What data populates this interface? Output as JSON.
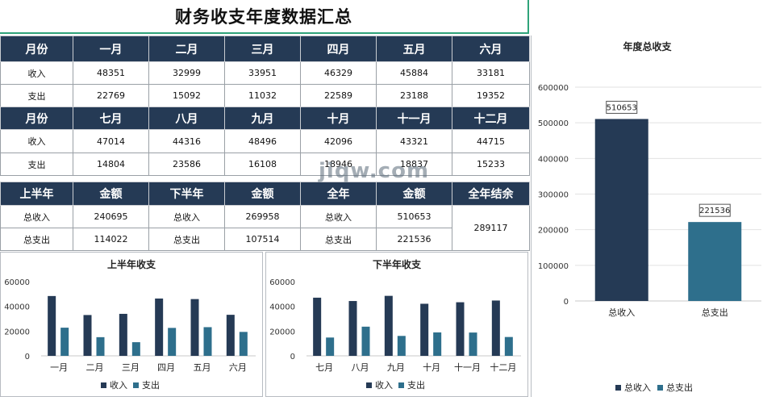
{
  "title": "财务收支年度数据汇总",
  "watermark": "jiqw.com",
  "month_table_1": {
    "header_label": "月份",
    "months": [
      "一月",
      "二月",
      "三月",
      "四月",
      "五月",
      "六月"
    ],
    "income_label": "收入",
    "expense_label": "支出",
    "income": [
      "48351",
      "32999",
      "33951",
      "46329",
      "45884",
      "33181"
    ],
    "expense": [
      "22769",
      "15092",
      "11032",
      "22589",
      "23188",
      "19352"
    ]
  },
  "month_table_2": {
    "header_label": "月份",
    "months": [
      "七月",
      "八月",
      "九月",
      "十月",
      "十一月",
      "十二月"
    ],
    "income_label": "收入",
    "expense_label": "支出",
    "income": [
      "47014",
      "44316",
      "48496",
      "42096",
      "43321",
      "44715"
    ],
    "expense": [
      "14804",
      "23586",
      "16108",
      "18946",
      "18837",
      "15233"
    ]
  },
  "summary": {
    "headers": [
      "上半年",
      "金额",
      "下半年",
      "金额",
      "全年",
      "金额",
      "全年结余"
    ],
    "rows": [
      [
        "总收入",
        "240695",
        "总收入",
        "269958",
        "总收入",
        "510653"
      ],
      [
        "总支出",
        "114022",
        "总支出",
        "107514",
        "总支出",
        "221536"
      ]
    ],
    "balance": "289117"
  },
  "colors": {
    "income": "#253a55",
    "expense": "#2e6f8c",
    "header": "#253a55",
    "accent": "#2fa37a"
  },
  "chart_data": [
    {
      "type": "bar",
      "title": "上半年收支",
      "categories": [
        "一月",
        "二月",
        "三月",
        "四月",
        "五月",
        "六月"
      ],
      "series": [
        {
          "name": "收入",
          "values": [
            48351,
            32999,
            33951,
            46329,
            45884,
            33181
          ]
        },
        {
          "name": "支出",
          "values": [
            22769,
            15092,
            11032,
            22589,
            23188,
            19352
          ]
        }
      ],
      "ylim": [
        0,
        60000
      ],
      "yticks": [
        "0",
        "20000",
        "40000",
        "60000"
      ],
      "legend": "bottom",
      "grid": false
    },
    {
      "type": "bar",
      "title": "下半年收支",
      "categories": [
        "七月",
        "八月",
        "九月",
        "十月",
        "十一月",
        "十二月"
      ],
      "series": [
        {
          "name": "收入",
          "values": [
            47014,
            44316,
            48496,
            42096,
            43321,
            44715
          ]
        },
        {
          "name": "支出",
          "values": [
            14804,
            23586,
            16108,
            18946,
            18837,
            15233
          ]
        }
      ],
      "ylim": [
        0,
        60000
      ],
      "yticks": [
        "0",
        "20000",
        "40000",
        "60000"
      ],
      "legend": "bottom",
      "grid": false
    },
    {
      "type": "bar",
      "title": "年度总收支",
      "categories": [
        "总收入",
        "总支出"
      ],
      "values": [
        510653,
        221536
      ],
      "data_labels": [
        "510653",
        "221536"
      ],
      "ylim": [
        0,
        600000
      ],
      "yticks": [
        "0",
        "100000",
        "200000",
        "300000",
        "400000",
        "500000",
        "600000"
      ],
      "legend_entries": [
        "总收入",
        "总支出"
      ],
      "legend": "bottom",
      "grid": true
    }
  ]
}
